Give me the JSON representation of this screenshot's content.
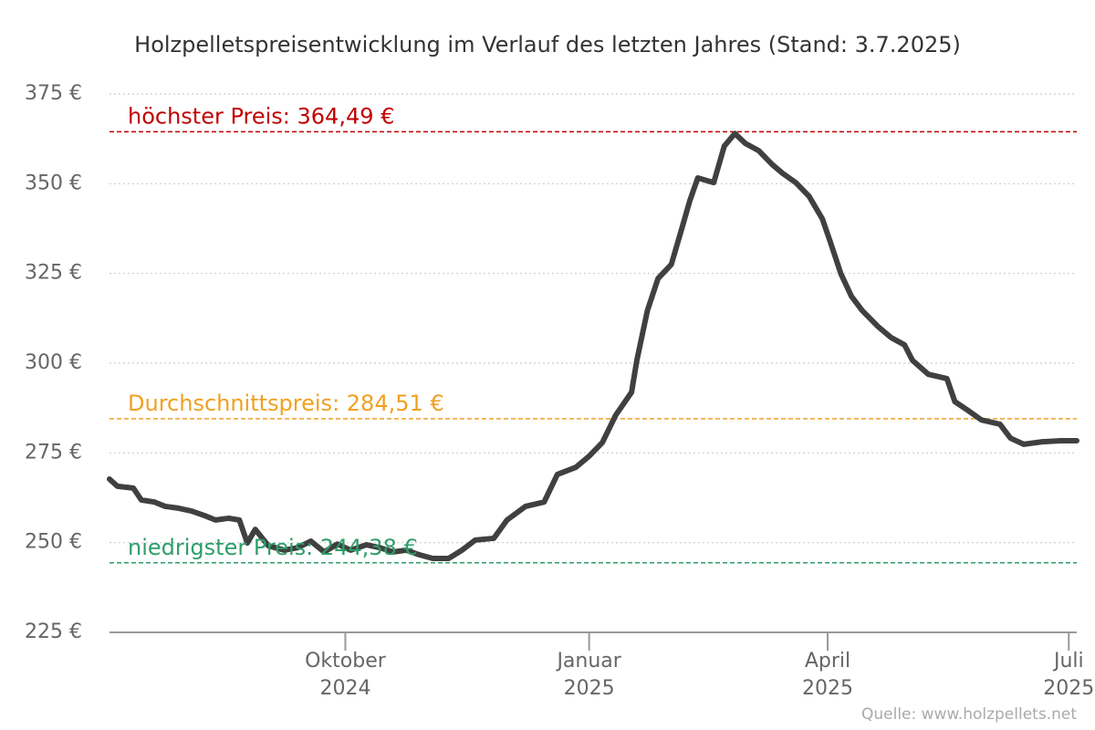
{
  "chart_data": {
    "type": "line",
    "title": "Holzpelletspreisentwicklung im Verlauf des letzten Jahres (Stand: 3.7.2025)",
    "source": "Quelle: www.holzpellets.net",
    "x": [
      "2024-07-04",
      "2024-07-07",
      "2024-07-13",
      "2024-07-16",
      "2024-07-21",
      "2024-07-25",
      "2024-07-30",
      "2024-08-04",
      "2024-08-09",
      "2024-08-13",
      "2024-08-18",
      "2024-08-22",
      "2024-08-25",
      "2024-08-28",
      "2024-09-02",
      "2024-09-08",
      "2024-09-13",
      "2024-09-18",
      "2024-09-23",
      "2024-09-28",
      "2024-10-03",
      "2024-10-09",
      "2024-10-14",
      "2024-10-19",
      "2024-10-24",
      "2024-10-29",
      "2024-11-03",
      "2024-11-09",
      "2024-11-14",
      "2024-11-19",
      "2024-11-26",
      "2024-12-01",
      "2024-12-08",
      "2024-12-15",
      "2024-12-20",
      "2024-12-27",
      "2025-01-01",
      "2025-01-06",
      "2025-01-11",
      "2025-01-17",
      "2025-01-19",
      "2025-01-23",
      "2025-01-27",
      "2025-02-01",
      "2025-02-05",
      "2025-02-08",
      "2025-02-11",
      "2025-02-17",
      "2025-02-21",
      "2025-02-25",
      "2025-03-01",
      "2025-03-06",
      "2025-03-11",
      "2025-03-15",
      "2025-03-20",
      "2025-03-25",
      "2025-03-30",
      "2025-04-02",
      "2025-04-06",
      "2025-04-10",
      "2025-04-14",
      "2025-04-20",
      "2025-04-25",
      "2025-04-30",
      "2025-05-03",
      "2025-05-09",
      "2025-05-16",
      "2025-05-19",
      "2025-05-24",
      "2025-05-29",
      "2025-06-05",
      "2025-06-09",
      "2025-06-14",
      "2025-06-21",
      "2025-06-28",
      "2025-07-04"
    ],
    "series": [
      {
        "name": "Preis",
        "color": "#404040",
        "values": [
          267.7,
          265.7,
          265.2,
          261.9,
          261.3,
          260.1,
          259.6,
          258.8,
          257.5,
          256.3,
          256.8,
          256.3,
          249.9,
          253.7,
          249.1,
          247.9,
          248.6,
          250.4,
          247.4,
          249.6,
          247.9,
          249.4,
          248.6,
          247.4,
          247.9,
          246.6,
          245.6,
          245.6,
          247.9,
          250.7,
          251.2,
          256.3,
          260.1,
          261.3,
          269.0,
          271.0,
          274.1,
          277.9,
          285.5,
          291.9,
          300.8,
          314.7,
          323.6,
          327.5,
          337.6,
          345.3,
          351.6,
          350.3,
          360.5,
          364.0,
          361.2,
          359.2,
          355.4,
          352.9,
          350.3,
          346.5,
          340.2,
          333.8,
          324.9,
          318.6,
          314.7,
          310.2,
          307.1,
          305.1,
          300.8,
          296.9,
          295.7,
          289.3,
          286.8,
          284.2,
          283.0,
          279.1,
          277.4,
          278.1,
          278.4,
          278.4
        ]
      }
    ],
    "xlim": [
      "2024-07-04",
      "2025-07-04"
    ],
    "xticks": [
      {
        "value": "2024-10-01",
        "label": [
          "Oktober",
          "2024"
        ]
      },
      {
        "value": "2025-01-01",
        "label": [
          "Januar",
          "2025"
        ]
      },
      {
        "value": "2025-04-01",
        "label": [
          "April",
          "2025"
        ]
      },
      {
        "value": "2025-07-01",
        "label": [
          "Juli",
          "2025"
        ]
      }
    ],
    "ylim": [
      225,
      375
    ],
    "yticks": [
      {
        "value": 225,
        "label": "225 €"
      },
      {
        "value": 250,
        "label": "250 €"
      },
      {
        "value": 275,
        "label": "275 €"
      },
      {
        "value": 300,
        "label": "300 €"
      },
      {
        "value": 325,
        "label": "325 €"
      },
      {
        "value": 350,
        "label": "350 €"
      },
      {
        "value": 375,
        "label": "375 €"
      }
    ],
    "grid": true,
    "reference_lines": [
      {
        "value": 364.49,
        "label": "höchster Preis: 364,49 €",
        "color": "#c00000"
      },
      {
        "value": 284.51,
        "label": "Durchschnittspreis: 284,51 €",
        "color": "#f0a020"
      },
      {
        "value": 244.38,
        "label": "niedrigster Preis: 244,38 €",
        "color": "#2e9e6a"
      }
    ]
  }
}
